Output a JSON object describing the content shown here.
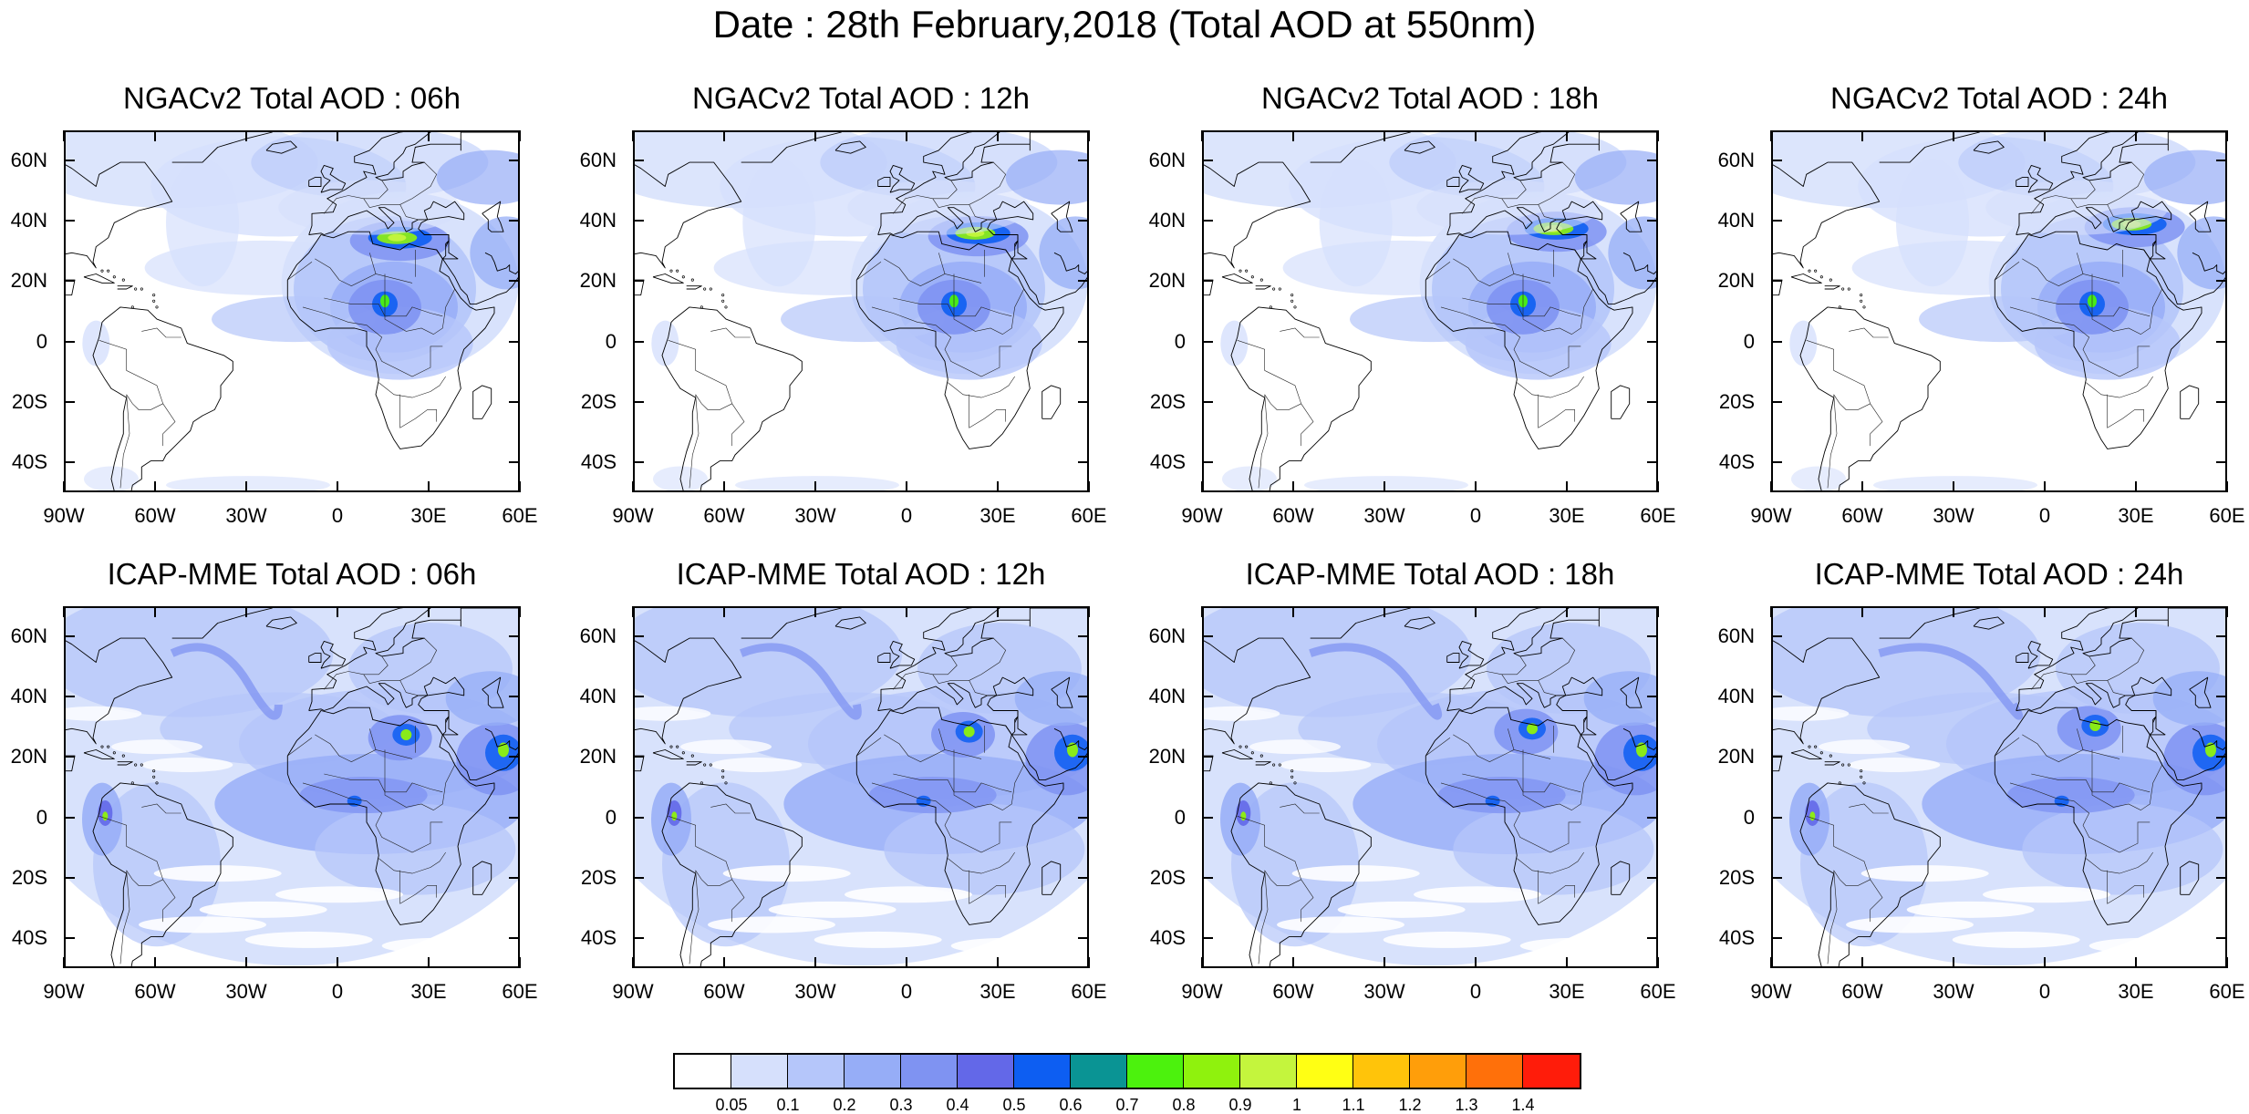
{
  "figure_title": "Date : 28th February,2018 (Total AOD at 550nm)",
  "panels": [
    {
      "title": "NGACv2 Total AOD : 06h"
    },
    {
      "title": "NGACv2 Total AOD : 12h"
    },
    {
      "title": "NGACv2 Total AOD : 18h"
    },
    {
      "title": "NGACv2 Total AOD : 24h"
    },
    {
      "title": "ICAP-MME Total AOD : 06h"
    },
    {
      "title": "ICAP-MME Total AOD : 12h"
    },
    {
      "title": "ICAP-MME Total AOD : 18h"
    },
    {
      "title": "ICAP-MME Total AOD : 24h"
    }
  ],
  "latitude_labels": [
    "60N",
    "40N",
    "20N",
    "0",
    "20S",
    "40S"
  ],
  "longitude_labels": [
    "90W",
    "60W",
    "30W",
    "0",
    "30E",
    "60E"
  ],
  "map_extent": {
    "lon_min": -90,
    "lon_max": 60,
    "lat_min": -50,
    "lat_max": 70
  },
  "colorbar": {
    "labels": [
      "0.05",
      "0.1",
      "0.2",
      "0.3",
      "0.4",
      "0.5",
      "0.6",
      "0.7",
      "0.8",
      "0.9",
      "1",
      "1.1",
      "1.2",
      "1.3",
      "1.4"
    ],
    "colors": [
      "#ffffff",
      "#d6e0fc",
      "#b5c6fa",
      "#96adf7",
      "#7f93f2",
      "#6368e8",
      "#0d5ef2",
      "#0a9494",
      "#4cf20d",
      "#8ff20d",
      "#c4f53d",
      "#ffff14",
      "#ffc40a",
      "#ff9e0a",
      "#ff700a",
      "#ff1c0a"
    ]
  },
  "fields": {
    "ngac": {
      "base": "light",
      "ocean_plumes": "weak",
      "dust_core": "strong",
      "hotspot_color": "#c4f53d"
    },
    "icap": {
      "base": "moderate",
      "ocean_plumes": "strong",
      "dust_core": "moderate",
      "hotspot_color": "#8ff20d"
    }
  }
}
